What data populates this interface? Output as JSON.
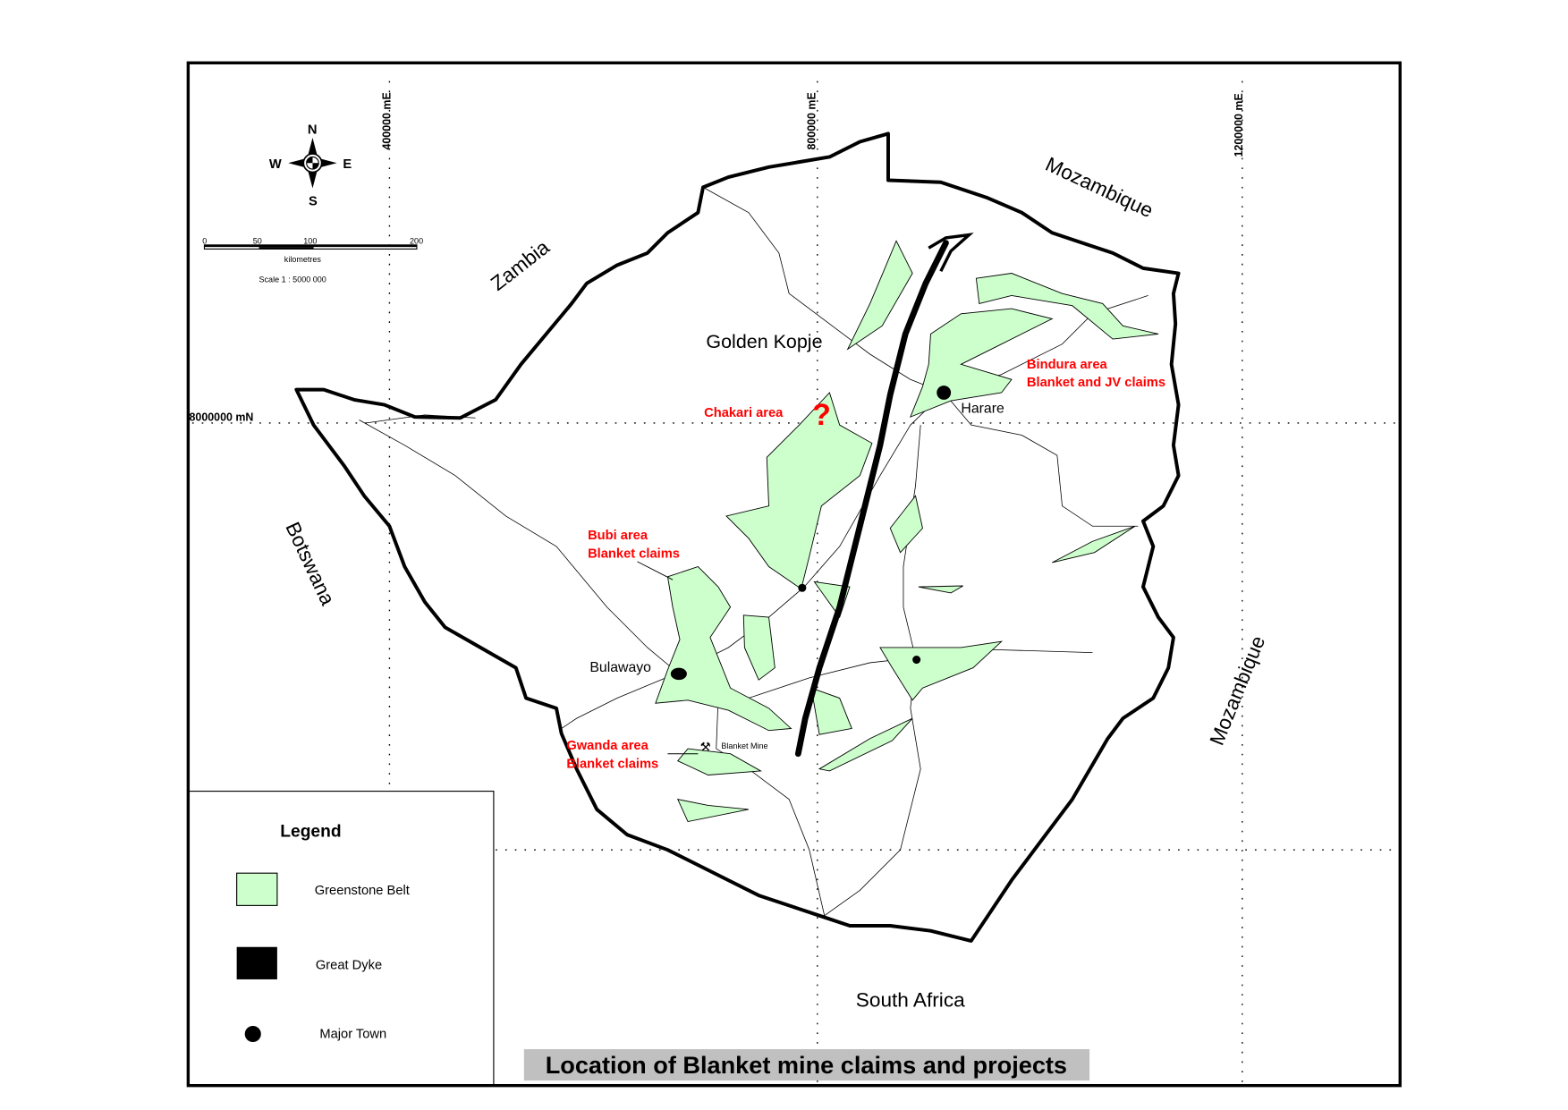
{
  "map": {
    "title": "Location of Blanket mine claims and projects",
    "grid_labels": {
      "e400": "400000 mE",
      "e800": "800000 mE",
      "e1200": "1200000 mE",
      "n8000": "8000000 mN"
    },
    "countries": {
      "zambia": "Zambia",
      "mozambique_north": "Mozambique",
      "mozambique_east": "Mozambique",
      "botswana": "Botswana",
      "south_africa": "South Africa"
    },
    "towns": {
      "harare": "Harare",
      "bulawayo": "Bulawayo"
    },
    "places": {
      "golden_kopje": "Golden Kopje",
      "blanket_mine": "Blanket Mine"
    },
    "project_areas": {
      "chakari": "Chakari area",
      "chakari_marker": "?",
      "bindura_1": "Bindura area",
      "bindura_2": "Blanket and JV claims",
      "bubi_1": "Bubi area",
      "bubi_2": "Blanket claims",
      "gwanda_1": "Gwanda area",
      "gwanda_2": "Blanket claims"
    },
    "compass": {
      "n": "N",
      "s": "S",
      "e": "E",
      "w": "W"
    },
    "scale_bar": {
      "ticks": [
        "0",
        "50",
        "100",
        "200"
      ],
      "unit": "kilometres",
      "scale": "Scale 1 : 5000 000"
    },
    "legend": {
      "title": "Legend",
      "items": [
        {
          "label": "Greenstone Belt",
          "symbol": "green-square",
          "color": "#ccffcc"
        },
        {
          "label": "Great Dyke",
          "symbol": "black-rectangle",
          "color": "#000000"
        },
        {
          "label": "Major Town",
          "symbol": "black-dot",
          "color": "#000000"
        }
      ]
    },
    "colors": {
      "project_label": "#ff0000",
      "greenstone": "#ccffcc",
      "title_bg": "#c0c0c0"
    }
  }
}
